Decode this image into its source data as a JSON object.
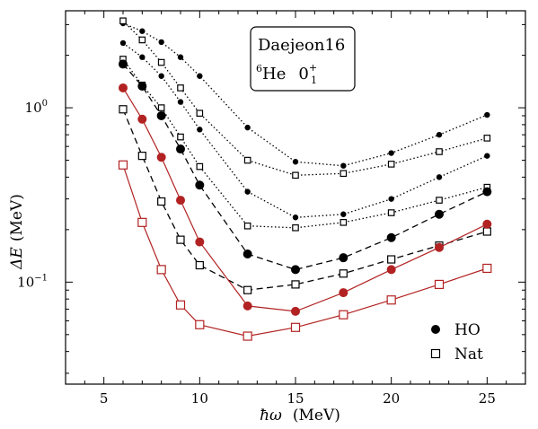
{
  "chart_data": {
    "type": "line",
    "xlabel_symbol": "ħω",
    "xlabel_unit": "(MeV)",
    "ylabel_symbol": "ΔE",
    "ylabel_unit": "(MeV)",
    "xlim": [
      3,
      27
    ],
    "ylim": [
      0.026,
      3.6
    ],
    "yscale": "log",
    "x_ticks": [
      5,
      10,
      15,
      20,
      25
    ],
    "y_ticks": [
      {
        "value": 1,
        "label": "10",
        "exp": "0"
      },
      {
        "value": 0.1,
        "label": "10",
        "exp": "−1"
      }
    ],
    "grid": false,
    "annotation": {
      "line1": "Daejeon16",
      "line2_mass": "6",
      "line2_nucleus": "He",
      "line2_state": "0",
      "line2_sup": "+",
      "line2_sub": "1"
    },
    "legend": {
      "position": "bottom-right",
      "entries": [
        {
          "label": "HO",
          "marker": "filled-circle"
        },
        {
          "label": "Nat",
          "marker": "open-square"
        }
      ]
    },
    "colors": {
      "black": "#000000",
      "red": "#b22222"
    },
    "x": [
      6,
      7,
      8,
      9,
      10,
      12.5,
      15,
      17.5,
      20,
      22.5,
      25
    ],
    "series": [
      {
        "basis": "HO",
        "line_style": "dotted",
        "color": "#000000",
        "values": [
          3.05,
          2.75,
          2.38,
          1.95,
          1.52,
          0.77,
          0.49,
          0.465,
          0.55,
          0.7,
          0.91
        ]
      },
      {
        "basis": "Nat",
        "line_style": "dotted",
        "color": "#000000",
        "values": [
          3.15,
          2.45,
          1.82,
          1.3,
          0.93,
          0.5,
          0.41,
          0.42,
          0.475,
          0.56,
          0.67
        ]
      },
      {
        "basis": "HO",
        "line_style": "dotted",
        "color": "#000000",
        "values": [
          2.35,
          1.95,
          1.52,
          1.08,
          0.75,
          0.33,
          0.235,
          0.245,
          0.3,
          0.4,
          0.53
        ]
      },
      {
        "basis": "Nat",
        "line_style": "dotted",
        "color": "#000000",
        "values": [
          1.9,
          1.35,
          1.0,
          0.68,
          0.46,
          0.21,
          0.205,
          0.22,
          0.25,
          0.295,
          0.35
        ]
      },
      {
        "basis": "HO",
        "line_style": "dashed",
        "color": "#000000",
        "values": [
          1.78,
          1.33,
          0.9,
          0.58,
          0.36,
          0.145,
          0.118,
          0.138,
          0.18,
          0.245,
          0.33
        ]
      },
      {
        "basis": "Nat",
        "line_style": "dashed",
        "color": "#000000",
        "values": [
          0.98,
          0.53,
          0.29,
          0.175,
          0.125,
          0.09,
          0.097,
          0.112,
          0.135,
          0.162,
          0.195
        ]
      },
      {
        "basis": "HO",
        "line_style": "solid",
        "color": "#b22222",
        "values": [
          1.3,
          0.86,
          0.52,
          0.295,
          0.17,
          0.073,
          0.068,
          0.087,
          0.118,
          0.158,
          0.215
        ]
      },
      {
        "basis": "Nat",
        "line_style": "solid",
        "color": "#b22222",
        "values": [
          0.47,
          0.22,
          0.118,
          0.074,
          0.057,
          0.049,
          0.055,
          0.065,
          0.079,
          0.097,
          0.12
        ]
      }
    ]
  }
}
